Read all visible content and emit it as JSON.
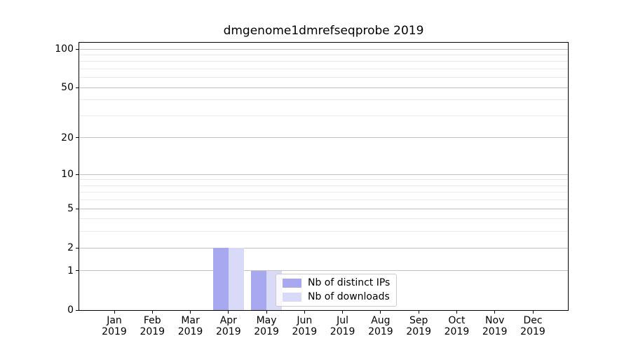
{
  "chart_data": {
    "type": "bar",
    "title": "dmgenome1dmrefseqprobe 2019",
    "categories": [
      "Jan",
      "Feb",
      "Mar",
      "Apr",
      "May",
      "Jun",
      "Jul",
      "Aug",
      "Sep",
      "Oct",
      "Nov",
      "Dec"
    ],
    "x_tick_second_line": "2019",
    "series": [
      {
        "name": "Nb of distinct IPs",
        "color": "#a8a8f0",
        "values": [
          0,
          0,
          0,
          2,
          1,
          0,
          0,
          0,
          0,
          0,
          0,
          0
        ]
      },
      {
        "name": "Nb of downloads",
        "color": "#d9d9f8",
        "values": [
          0,
          0,
          0,
          2,
          1,
          0,
          0,
          0,
          0,
          0,
          0,
          0
        ]
      }
    ],
    "yscale": "log1p",
    "ylim": [
      0,
      112
    ],
    "y_major_ticks": [
      0,
      1,
      2,
      5,
      10,
      20,
      50,
      100
    ],
    "y_minor_gridlines": [
      3,
      4,
      6,
      7,
      8,
      9,
      30,
      40,
      60,
      70,
      80,
      90
    ],
    "grid": "on",
    "legend_position": "lower center-right inside plot",
    "colors": {
      "major_grid": "#c3c3c3",
      "minor_grid": "#e9e9e9",
      "axis": "#000000",
      "background": "#ffffff"
    }
  }
}
